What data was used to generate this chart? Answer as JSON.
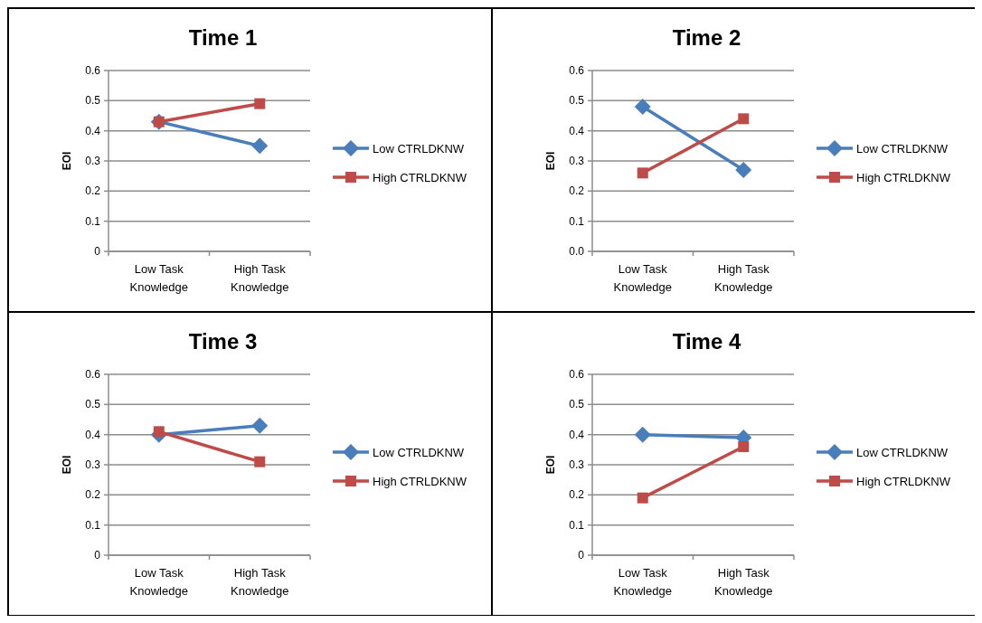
{
  "chart_data": [
    {
      "type": "line",
      "title": "Time 1",
      "ylabel": "EOI",
      "categories": [
        "Low Task Knowledge",
        "High Task Knowledge"
      ],
      "ylim": [
        0,
        0.6
      ],
      "yticks": [
        0,
        0.1,
        0.2,
        0.3,
        0.4,
        0.5,
        0.6
      ],
      "grid": "y",
      "legend": "right",
      "series": [
        {
          "name": "Low CTRLDKNW",
          "color": "#4a7ebb",
          "marker": "diamond",
          "values": [
            0.43,
            0.35
          ]
        },
        {
          "name": "High CTRLDKNW",
          "color": "#be4b48",
          "marker": "square",
          "values": [
            0.43,
            0.49
          ]
        }
      ]
    },
    {
      "type": "line",
      "title": "Time 2",
      "ylabel": "EOI",
      "categories": [
        "Low Task Knowledge",
        "High Task Knowledge"
      ],
      "ylim": [
        0,
        0.6
      ],
      "yticks": [
        {
          "value": 0,
          "label": "0.0"
        },
        0.1,
        0.2,
        0.3,
        0.4,
        0.5,
        0.6
      ],
      "grid": "y",
      "legend": "right",
      "series": [
        {
          "name": "Low CTRLDKNW",
          "color": "#4a7ebb",
          "marker": "diamond",
          "values": [
            0.48,
            0.27
          ]
        },
        {
          "name": "High CTRLDKNW",
          "color": "#be4b48",
          "marker": "square",
          "values": [
            0.26,
            0.44
          ]
        }
      ]
    },
    {
      "type": "line",
      "title": "Time 3",
      "ylabel": "EOI",
      "categories": [
        "Low Task Knowledge",
        "High Task Knowledge"
      ],
      "ylim": [
        0,
        0.6
      ],
      "yticks": [
        0,
        0.1,
        0.2,
        0.3,
        0.4,
        0.5,
        0.6
      ],
      "grid": "y",
      "legend": "right",
      "series": [
        {
          "name": "Low CTRLDKNW",
          "color": "#4a7ebb",
          "marker": "diamond",
          "values": [
            0.4,
            0.43
          ]
        },
        {
          "name": "High CTRLDKNW",
          "color": "#be4b48",
          "marker": "square",
          "values": [
            0.41,
            0.31
          ]
        }
      ]
    },
    {
      "type": "line",
      "title": "Time 4",
      "ylabel": "EOI",
      "categories": [
        "Low Task Knowledge",
        "High Task Knowledge"
      ],
      "ylim": [
        0,
        0.6
      ],
      "yticks": [
        0,
        0.1,
        0.2,
        0.3,
        0.4,
        0.5,
        0.6
      ],
      "grid": "y",
      "legend": "right",
      "series": [
        {
          "name": "Low CTRLDKNW",
          "color": "#4a7ebb",
          "marker": "diamond",
          "values": [
            0.4,
            0.39
          ]
        },
        {
          "name": "High CTRLDKNW",
          "color": "#be4b48",
          "marker": "square",
          "values": [
            0.19,
            0.36
          ]
        }
      ]
    }
  ]
}
